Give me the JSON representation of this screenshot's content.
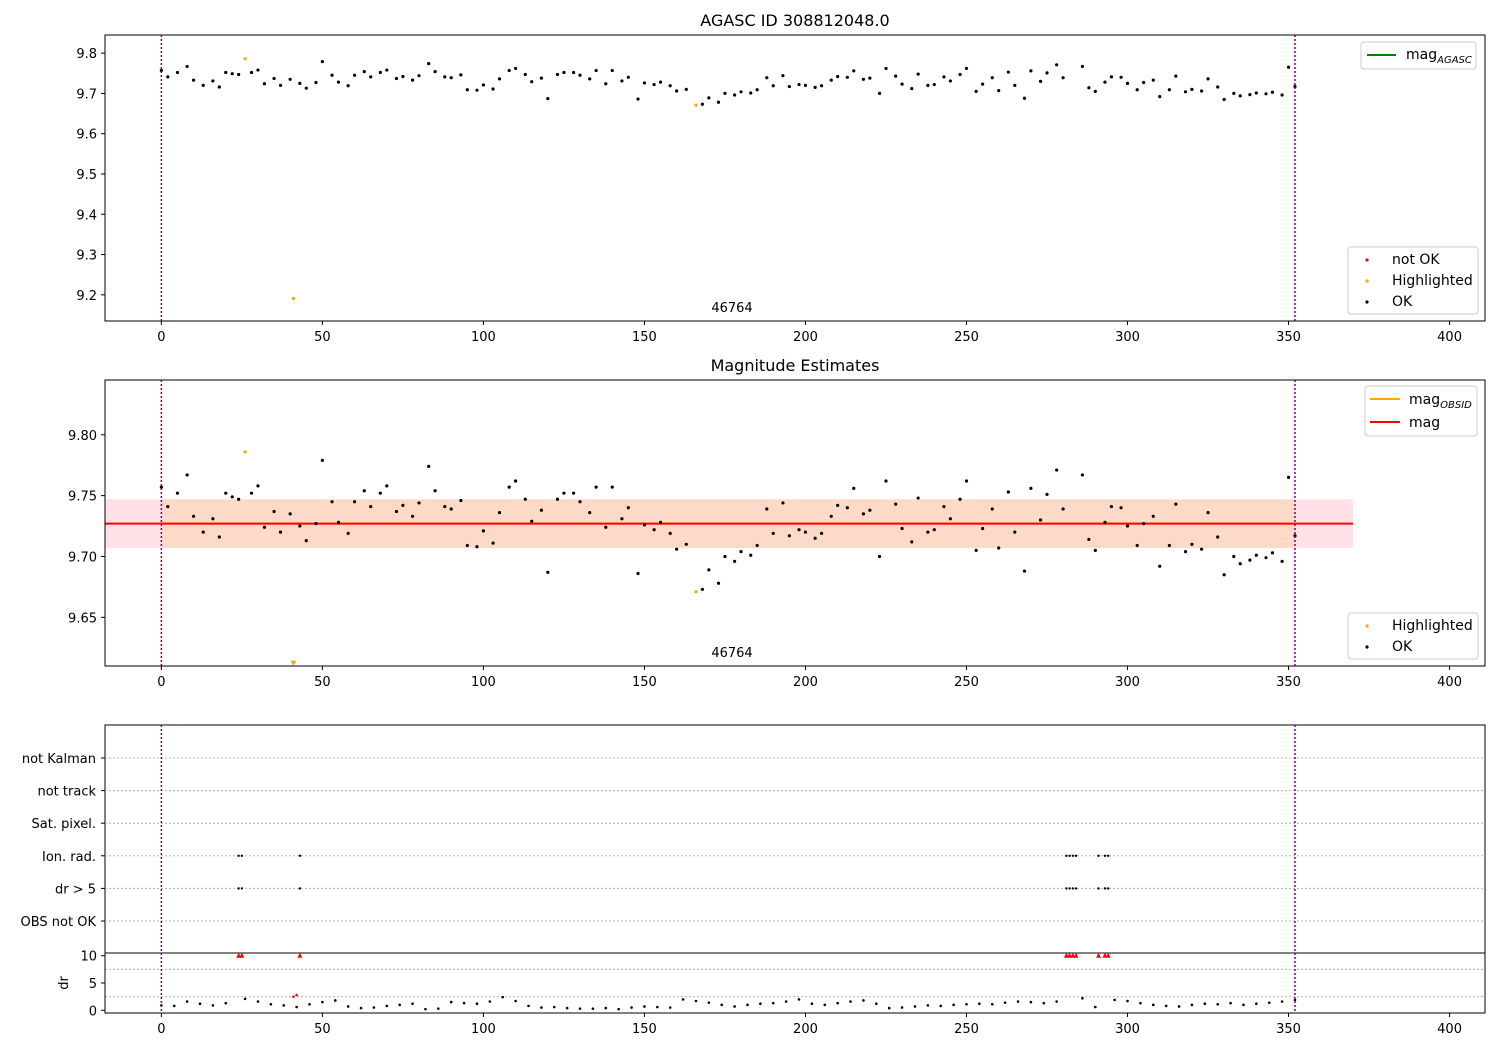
{
  "chart_data": [
    {
      "type": "scatter",
      "title": "AGASC ID 308812048.0",
      "xlim": [
        -17.5,
        411
      ],
      "ylim": [
        9.135,
        9.845
      ],
      "xticks": [
        0,
        50,
        100,
        150,
        200,
        250,
        300,
        350,
        400
      ],
      "yticks": [
        9.2,
        9.3,
        9.4,
        9.5,
        9.6,
        9.7,
        9.8
      ],
      "vlines": [
        0,
        352
      ],
      "annotations": [
        {
          "text": "46764",
          "x": 176,
          "y": 9.155
        }
      ],
      "legends": [
        {
          "position": "top-right",
          "entries": [
            {
              "label": "mag",
              "sub": "AGASC",
              "color": "#008000",
              "kind": "line"
            }
          ]
        },
        {
          "position": "bottom-right",
          "entries": [
            {
              "label": "not OK",
              "color": "#ff0000",
              "kind": "dot"
            },
            {
              "label": "Highlighted",
              "color": "#ffa500",
              "kind": "dot"
            },
            {
              "label": "OK",
              "color": "#000000",
              "kind": "dot"
            }
          ]
        }
      ],
      "series": [
        {
          "name": "Highlighted",
          "color": "#ffa500",
          "x": [
            26,
            41,
            166
          ],
          "y": [
            9.786,
            9.191,
            9.671
          ]
        },
        {
          "name": "OK",
          "color": "#000000",
          "x": [
            0,
            2,
            5,
            8,
            10,
            13,
            16,
            18,
            20,
            22,
            24,
            28,
            30,
            32,
            35,
            37,
            40,
            43,
            45,
            48,
            50,
            53,
            55,
            58,
            60,
            63,
            65,
            68,
            70,
            73,
            75,
            78,
            80,
            83,
            85,
            88,
            90,
            93,
            95,
            98,
            100,
            103,
            105,
            108,
            110,
            113,
            115,
            118,
            120,
            123,
            125,
            128,
            130,
            133,
            135,
            138,
            140,
            143,
            145,
            148,
            150,
            153,
            155,
            158,
            160,
            163,
            168,
            170,
            173,
            175,
            178,
            180,
            183,
            185,
            188,
            190,
            193,
            195,
            198,
            200,
            203,
            205,
            208,
            210,
            213,
            215,
            218,
            220,
            223,
            225,
            228,
            230,
            233,
            235,
            238,
            240,
            243,
            245,
            248,
            250,
            253,
            255,
            258,
            260,
            263,
            265,
            268,
            270,
            273,
            275,
            278,
            280,
            286,
            288,
            290,
            293,
            295,
            298,
            300,
            303,
            305,
            308,
            310,
            313,
            315,
            318,
            320,
            323,
            325,
            328,
            330,
            333,
            335,
            338,
            340,
            343,
            345,
            348,
            350,
            352
          ],
          "y": [
            9.757,
            9.741,
            9.752,
            9.767,
            9.733,
            9.72,
            9.731,
            9.716,
            9.752,
            9.749,
            9.747,
            9.752,
            9.758,
            9.724,
            9.737,
            9.72,
            9.735,
            9.725,
            9.713,
            9.727,
            9.779,
            9.745,
            9.728,
            9.719,
            9.745,
            9.754,
            9.741,
            9.752,
            9.758,
            9.737,
            9.742,
            9.733,
            9.744,
            9.774,
            9.754,
            9.741,
            9.739,
            9.746,
            9.709,
            9.708,
            9.721,
            9.711,
            9.736,
            9.757,
            9.762,
            9.747,
            9.729,
            9.738,
            9.687,
            9.747,
            9.752,
            9.752,
            9.745,
            9.736,
            9.757,
            9.724,
            9.757,
            9.731,
            9.74,
            9.686,
            9.726,
            9.722,
            9.728,
            9.719,
            9.706,
            9.71,
            9.673,
            9.689,
            9.678,
            9.7,
            9.696,
            9.704,
            9.701,
            9.709,
            9.739,
            9.719,
            9.744,
            9.717,
            9.722,
            9.72,
            9.715,
            9.719,
            9.733,
            9.742,
            9.74,
            9.756,
            9.735,
            9.738,
            9.7,
            9.762,
            9.743,
            9.723,
            9.712,
            9.748,
            9.72,
            9.722,
            9.741,
            9.731,
            9.747,
            9.762,
            9.705,
            9.723,
            9.739,
            9.707,
            9.753,
            9.72,
            9.688,
            9.756,
            9.73,
            9.751,
            9.771,
            9.739,
            9.767,
            9.714,
            9.705,
            9.728,
            9.741,
            9.74,
            9.725,
            9.709,
            9.727,
            9.733,
            9.692,
            9.709,
            9.743,
            9.704,
            9.71,
            9.706,
            9.736,
            9.716,
            9.685,
            9.7,
            9.694,
            9.697,
            9.701,
            9.699,
            9.703,
            9.696,
            9.765,
            9.717
          ]
        }
      ]
    },
    {
      "type": "scatter",
      "title": "Magnitude Estimates",
      "xlim": [
        -17.5,
        411
      ],
      "ylim": [
        9.61,
        9.845
      ],
      "xticks": [
        0,
        50,
        100,
        150,
        200,
        250,
        300,
        350,
        400
      ],
      "yticks": [
        9.65,
        9.7,
        9.75,
        9.8
      ],
      "ytick_labels": [
        "9.65",
        "9.70",
        "9.75",
        "9.80"
      ],
      "vlines": [
        0,
        352
      ],
      "bands": [
        {
          "y": [
            9.707,
            9.747
          ],
          "x": [
            -17.5,
            0
          ],
          "color": "#ffe0e6"
        },
        {
          "y": [
            9.707,
            9.747
          ],
          "x": [
            0,
            352
          ],
          "color": "#fddac8"
        },
        {
          "y": [
            9.707,
            9.747
          ],
          "x": [
            352,
            370
          ],
          "color": "#ffe0e6"
        }
      ],
      "hlines": [
        {
          "label": "mag",
          "sub": "OBSID",
          "y": 9.727,
          "x": [
            0,
            352
          ],
          "color": "#ffa500"
        },
        {
          "label": "mag",
          "y": 9.727,
          "x": [
            -17.5,
            370
          ],
          "color": "#ff0000"
        }
      ],
      "annotations": [
        {
          "text": "46764",
          "x": 176,
          "y": 9.62
        }
      ],
      "legends": [
        {
          "position": "top-right",
          "entries": [
            {
              "label": "mag",
              "sub": "OBSID",
              "color": "#ffa500",
              "kind": "line"
            },
            {
              "label": "mag",
              "color": "#ff0000",
              "kind": "line"
            }
          ]
        },
        {
          "position": "bottom-right",
          "entries": [
            {
              "label": "Highlighted",
              "color": "#ffa500",
              "kind": "dot"
            },
            {
              "label": "OK",
              "color": "#000000",
              "kind": "dot"
            }
          ]
        }
      ],
      "series": [
        {
          "name": "Highlighted",
          "color": "#ffa500",
          "x": [
            26,
            166
          ],
          "y": [
            9.786,
            9.671
          ]
        },
        {
          "name": "Highlighted (below axis)",
          "color": "#ffa500",
          "marker": "triangle-down",
          "x": [
            41
          ],
          "y": [
            9.612
          ]
        },
        {
          "name": "OK",
          "color": "#000000",
          "x": [
            0,
            2,
            5,
            8,
            10,
            13,
            16,
            18,
            20,
            22,
            24,
            28,
            30,
            32,
            35,
            37,
            40,
            43,
            45,
            48,
            50,
            53,
            55,
            58,
            60,
            63,
            65,
            68,
            70,
            73,
            75,
            78,
            80,
            83,
            85,
            88,
            90,
            93,
            95,
            98,
            100,
            103,
            105,
            108,
            110,
            113,
            115,
            118,
            120,
            123,
            125,
            128,
            130,
            133,
            135,
            138,
            140,
            143,
            145,
            148,
            150,
            153,
            155,
            158,
            160,
            163,
            168,
            170,
            173,
            175,
            178,
            180,
            183,
            185,
            188,
            190,
            193,
            195,
            198,
            200,
            203,
            205,
            208,
            210,
            213,
            215,
            218,
            220,
            223,
            225,
            228,
            230,
            233,
            235,
            238,
            240,
            243,
            245,
            248,
            250,
            253,
            255,
            258,
            260,
            263,
            265,
            268,
            270,
            273,
            275,
            278,
            280,
            286,
            288,
            290,
            293,
            295,
            298,
            300,
            303,
            305,
            308,
            310,
            313,
            315,
            318,
            320,
            323,
            325,
            328,
            330,
            333,
            335,
            338,
            340,
            343,
            345,
            348,
            350,
            352
          ],
          "y": [
            9.757,
            9.741,
            9.752,
            9.767,
            9.733,
            9.72,
            9.731,
            9.716,
            9.752,
            9.749,
            9.747,
            9.752,
            9.758,
            9.724,
            9.737,
            9.72,
            9.735,
            9.725,
            9.713,
            9.727,
            9.779,
            9.745,
            9.728,
            9.719,
            9.745,
            9.754,
            9.741,
            9.752,
            9.758,
            9.737,
            9.742,
            9.733,
            9.744,
            9.774,
            9.754,
            9.741,
            9.739,
            9.746,
            9.709,
            9.708,
            9.721,
            9.711,
            9.736,
            9.757,
            9.762,
            9.747,
            9.729,
            9.738,
            9.687,
            9.747,
            9.752,
            9.752,
            9.745,
            9.736,
            9.757,
            9.724,
            9.757,
            9.731,
            9.74,
            9.686,
            9.726,
            9.722,
            9.728,
            9.719,
            9.706,
            9.71,
            9.673,
            9.689,
            9.678,
            9.7,
            9.696,
            9.704,
            9.701,
            9.709,
            9.739,
            9.719,
            9.744,
            9.717,
            9.722,
            9.72,
            9.715,
            9.719,
            9.733,
            9.742,
            9.74,
            9.756,
            9.735,
            9.738,
            9.7,
            9.762,
            9.743,
            9.723,
            9.712,
            9.748,
            9.72,
            9.722,
            9.741,
            9.731,
            9.747,
            9.762,
            9.705,
            9.723,
            9.739,
            9.707,
            9.753,
            9.72,
            9.688,
            9.756,
            9.73,
            9.751,
            9.771,
            9.739,
            9.767,
            9.714,
            9.705,
            9.728,
            9.741,
            9.74,
            9.725,
            9.709,
            9.727,
            9.733,
            9.692,
            9.709,
            9.743,
            9.704,
            9.71,
            9.706,
            9.736,
            9.716,
            9.685,
            9.7,
            9.694,
            9.697,
            9.701,
            9.699,
            9.703,
            9.696,
            9.765,
            9.717
          ]
        }
      ]
    },
    {
      "type": "scatter",
      "title": "",
      "xlim": [
        -17.5,
        411
      ],
      "categories": [
        "not Kalman",
        "not track",
        "Sat. pixel.",
        "Ion. rad.",
        "dr > 5",
        "OBS not OK"
      ],
      "vlines": [
        0,
        352
      ],
      "series": [
        {
          "name": "Ion. rad.",
          "color": "#000000",
          "x": [
            24,
            25,
            43,
            281,
            282,
            283,
            284,
            291,
            293,
            294
          ],
          "category": "Ion. rad."
        },
        {
          "name": "dr > 5",
          "color": "#000000",
          "x": [
            24,
            25,
            43,
            281,
            282,
            283,
            284,
            291,
            293,
            294
          ],
          "category": "dr > 5"
        }
      ]
    },
    {
      "type": "scatter",
      "ylabel": "dr",
      "xlim": [
        -17.5,
        411
      ],
      "ylim": [
        -0.5,
        10.5
      ],
      "xticks": [
        0,
        50,
        100,
        150,
        200,
        250,
        300,
        350,
        400
      ],
      "yticks": [
        0,
        5,
        10
      ],
      "hline": 10,
      "vlines": [
        0,
        352
      ],
      "series": [
        {
          "name": "dr",
          "color": "#000000",
          "x": [
            0,
            4,
            8,
            12,
            16,
            20,
            26,
            30,
            34,
            38,
            42,
            46,
            50,
            54,
            58,
            62,
            66,
            70,
            74,
            78,
            82,
            86,
            90,
            94,
            98,
            102,
            106,
            110,
            114,
            118,
            122,
            126,
            130,
            134,
            138,
            142,
            146,
            150,
            154,
            158,
            162,
            166,
            170,
            174,
            178,
            182,
            186,
            190,
            194,
            198,
            202,
            206,
            210,
            214,
            218,
            222,
            226,
            230,
            234,
            238,
            242,
            246,
            250,
            254,
            258,
            262,
            266,
            270,
            274,
            278,
            286,
            290,
            296,
            300,
            304,
            308,
            312,
            316,
            320,
            324,
            328,
            332,
            336,
            340,
            344,
            348,
            352
          ],
          "y": [
            0.9,
            0.8,
            1.6,
            1.2,
            0.9,
            1.3,
            2.1,
            1.6,
            1.1,
            0.9,
            0.6,
            1.1,
            1.5,
            1.8,
            0.7,
            0.4,
            0.5,
            0.8,
            1.0,
            1.2,
            0.2,
            0.3,
            1.5,
            1.3,
            1.2,
            1.6,
            2.4,
            1.7,
            0.8,
            0.5,
            0.6,
            0.4,
            0.3,
            0.3,
            0.4,
            0.2,
            0.5,
            0.7,
            0.6,
            0.5,
            2.0,
            1.7,
            1.4,
            1.0,
            0.7,
            1.0,
            1.2,
            1.3,
            1.6,
            2.0,
            1.2,
            1.0,
            1.3,
            1.6,
            1.8,
            1.2,
            0.4,
            0.5,
            0.7,
            0.9,
            0.8,
            1.0,
            1.1,
            1.2,
            1.1,
            1.4,
            1.6,
            1.5,
            1.3,
            1.6,
            2.2,
            0.6,
            1.9,
            1.7,
            1.3,
            1.0,
            0.8,
            0.7,
            1.0,
            1.2,
            1.1,
            1.3,
            1.0,
            1.2,
            1.4,
            1.6,
            1.9
          ]
        },
        {
          "name": "dr > 10",
          "color": "#ff0000",
          "marker": "triangle-up",
          "x": [
            24,
            25,
            43,
            281,
            282,
            283,
            284,
            291,
            293,
            294
          ],
          "y": [
            10,
            10,
            10,
            10,
            10,
            10,
            10,
            10,
            10,
            10
          ]
        },
        {
          "name": "dr high",
          "color": "#ff0000",
          "x": [
            41,
            42
          ],
          "y": [
            2.5,
            2.8
          ]
        }
      ]
    }
  ],
  "colors": {
    "vline": "#800080",
    "ok": "#000000",
    "not_ok": "#ff0000",
    "highlighted": "#ffa500",
    "agasc_line": "#008000"
  }
}
